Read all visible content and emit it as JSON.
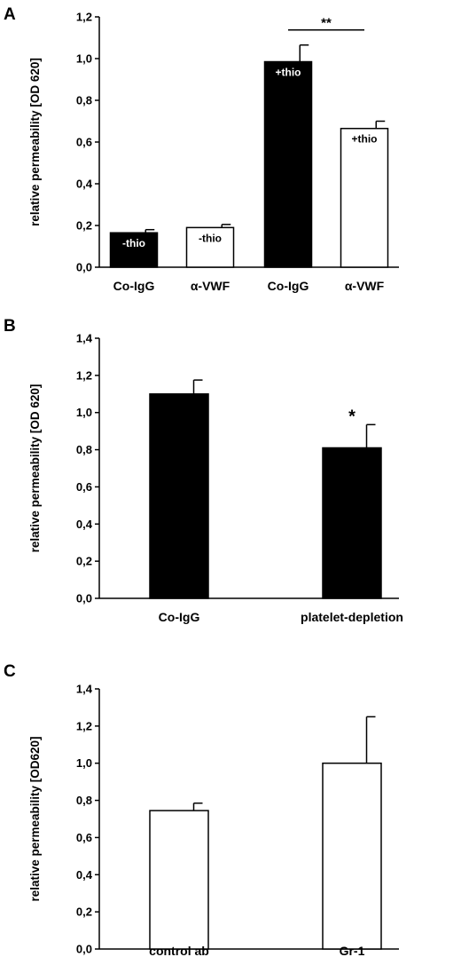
{
  "chart_data": [
    {
      "type": "bar",
      "panel_label": "A",
      "ylabel": "relative permeability [OD 620]",
      "ylim": [
        0,
        1.2
      ],
      "ytick_labels": [
        "0,0",
        "0,2",
        "0,4",
        "0,6",
        "0,8",
        "1,0",
        "1,2"
      ],
      "categories": [
        "Co-IgG",
        "α-VWF",
        "Co-IgG",
        "α-VWF"
      ],
      "values": [
        0.165,
        0.19,
        0.985,
        0.665
      ],
      "errors": [
        0.015,
        0.015,
        0.08,
        0.035
      ],
      "bar_fills": [
        "#000000",
        "#ffffff",
        "#000000",
        "#ffffff"
      ],
      "bar_labels": [
        "-thio",
        "-thio",
        "+thio",
        "+thio"
      ],
      "significance": [
        {
          "between": [
            2,
            3
          ],
          "label": "**"
        }
      ],
      "grid": false
    },
    {
      "type": "bar",
      "panel_label": "B",
      "ylabel": "relative permeability [OD 620]",
      "ylim": [
        0,
        1.4
      ],
      "ytick_labels": [
        "0,0",
        "0,2",
        "0,4",
        "0,6",
        "0,8",
        "1,0",
        "1,2",
        "1,4"
      ],
      "categories": [
        "Co-IgG",
        "platelet-depletion"
      ],
      "values": [
        1.1,
        0.81
      ],
      "errors": [
        0.075,
        0.125
      ],
      "bar_fills": [
        "#000000",
        "#000000"
      ],
      "bar_labels": [
        "",
        ""
      ],
      "significance": [
        {
          "on": 1,
          "label": "*"
        }
      ],
      "grid": false
    },
    {
      "type": "bar",
      "panel_label": "C",
      "ylabel": "relative permeability [OD620]",
      "ylim": [
        0,
        1.4
      ],
      "ytick_labels": [
        "0,0",
        "0,2",
        "0,4",
        "0,6",
        "0,8",
        "1,0",
        "1,2",
        "1,4"
      ],
      "categories": [
        "control ab",
        "Gr-1"
      ],
      "values": [
        0.745,
        1.0
      ],
      "errors": [
        0.04,
        0.25
      ],
      "bar_fills": [
        "#ffffff",
        "#ffffff"
      ],
      "bar_labels": [
        "",
        ""
      ],
      "significance": [],
      "grid": false
    }
  ]
}
